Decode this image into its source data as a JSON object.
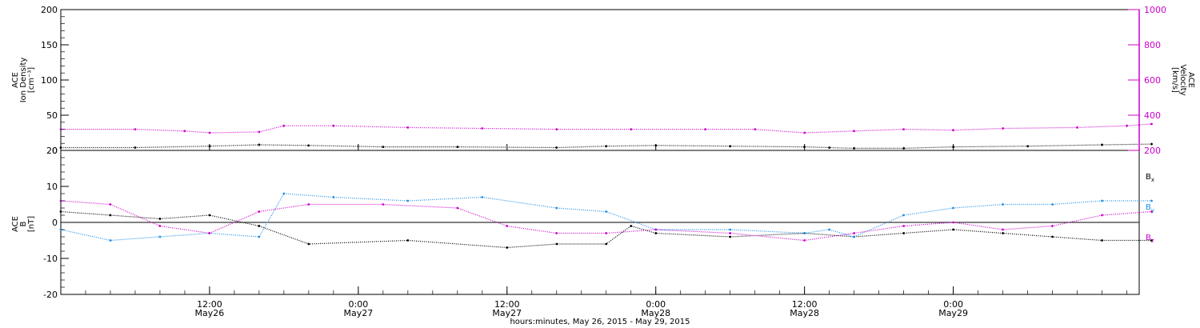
{
  "chart_data": [
    {
      "type": "scatter",
      "panel": "top",
      "ylabel_left_lines": [
        "ACE",
        "Ion Density",
        "[cm⁻³]"
      ],
      "ylabel_right_lines": [
        "ACE",
        "Velocity",
        "[km/s]"
      ],
      "ylim_left": [
        0,
        200
      ],
      "yticks_left": [
        "0",
        "50",
        "100",
        "150",
        "200"
      ],
      "ylim_right": [
        200,
        1000
      ],
      "yticks_right": [
        "200",
        "400",
        "600",
        "800",
        "1000"
      ],
      "right_axis_color": "#cc00cc",
      "x_range_hours": [
        0,
        87
      ],
      "series": [
        {
          "color": "#000000",
          "points": [
            [
              0,
              4
            ],
            [
              6,
              4
            ],
            [
              12,
              6
            ],
            [
              16,
              8
            ],
            [
              20,
              7
            ],
            [
              26,
              5
            ],
            [
              32,
              5
            ],
            [
              40,
              4
            ],
            [
              44,
              6
            ],
            [
              48,
              7
            ],
            [
              54,
              6
            ],
            [
              60,
              5
            ],
            [
              62,
              4
            ],
            [
              64,
              3
            ],
            [
              68,
              3
            ],
            [
              72,
              5
            ],
            [
              78,
              6
            ],
            [
              84,
              8
            ],
            [
              88,
              9
            ]
          ]
        },
        {
          "color": "#cc00cc",
          "points": [
            [
              0,
              320
            ],
            [
              6,
              320
            ],
            [
              10,
              310
            ],
            [
              12,
              300
            ],
            [
              16,
              305
            ],
            [
              18,
              340
            ],
            [
              22,
              340
            ],
            [
              28,
              330
            ],
            [
              34,
              325
            ],
            [
              40,
              320
            ],
            [
              46,
              320
            ],
            [
              52,
              320
            ],
            [
              56,
              320
            ],
            [
              60,
              300
            ],
            [
              64,
              310
            ],
            [
              68,
              320
            ],
            [
              72,
              315
            ],
            [
              76,
              325
            ],
            [
              82,
              330
            ],
            [
              86,
              340
            ],
            [
              88,
              350
            ]
          ]
        }
      ]
    },
    {
      "type": "scatter",
      "panel": "bottom",
      "ylabel_lines": [
        "ACE",
        "B",
        "[nT]"
      ],
      "ylim": [
        -20,
        20
      ],
      "yticks": [
        "-20",
        "-10",
        "0",
        "10",
        "20"
      ],
      "series": [
        {
          "name": "B",
          "sub": "x",
          "color": "#000000",
          "points": [
            [
              0,
              3
            ],
            [
              4,
              2
            ],
            [
              8,
              1
            ],
            [
              12,
              2
            ],
            [
              16,
              -1
            ],
            [
              20,
              -6
            ],
            [
              28,
              -5
            ],
            [
              36,
              -7
            ],
            [
              40,
              -6
            ],
            [
              44,
              -6
            ],
            [
              46,
              -1
            ],
            [
              48,
              -3
            ],
            [
              54,
              -4
            ],
            [
              60,
              -3
            ],
            [
              64,
              -4
            ],
            [
              68,
              -3
            ],
            [
              72,
              -2
            ],
            [
              76,
              -3
            ],
            [
              80,
              -4
            ],
            [
              84,
              -5
            ],
            [
              88,
              -5
            ]
          ]
        },
        {
          "name": "B",
          "sub": "y",
          "color": "#1f8fe6",
          "points": [
            [
              0,
              -2
            ],
            [
              4,
              -5
            ],
            [
              8,
              -4
            ],
            [
              12,
              -3
            ],
            [
              16,
              -4
            ],
            [
              18,
              8
            ],
            [
              22,
              7
            ],
            [
              28,
              6
            ],
            [
              34,
              7
            ],
            [
              40,
              4
            ],
            [
              44,
              3
            ],
            [
              48,
              -2
            ],
            [
              54,
              -2
            ],
            [
              60,
              -3
            ],
            [
              62,
              -2
            ],
            [
              64,
              -4
            ],
            [
              68,
              2
            ],
            [
              72,
              4
            ],
            [
              76,
              5
            ],
            [
              80,
              5
            ],
            [
              84,
              6
            ],
            [
              88,
              6
            ]
          ]
        },
        {
          "name": "B",
          "sub": "z",
          "color": "#cc00cc",
          "points": [
            [
              0,
              6
            ],
            [
              4,
              5
            ],
            [
              8,
              -1
            ],
            [
              12,
              -3
            ],
            [
              16,
              3
            ],
            [
              20,
              5
            ],
            [
              26,
              5
            ],
            [
              32,
              4
            ],
            [
              36,
              -1
            ],
            [
              40,
              -3
            ],
            [
              44,
              -3
            ],
            [
              48,
              -2
            ],
            [
              54,
              -3
            ],
            [
              60,
              -5
            ],
            [
              64,
              -3
            ],
            [
              68,
              -1
            ],
            [
              72,
              0
            ],
            [
              76,
              -2
            ],
            [
              80,
              -1
            ],
            [
              84,
              2
            ],
            [
              88,
              3
            ]
          ]
        }
      ]
    }
  ],
  "x_ticks": [
    {
      "hours": 12,
      "time": "12:00",
      "date": "May26"
    },
    {
      "hours": 24,
      "time": "0:00",
      "date": "May27"
    },
    {
      "hours": 36,
      "time": "12:00",
      "date": "May27"
    },
    {
      "hours": 48,
      "time": "0:00",
      "date": "May28"
    },
    {
      "hours": 60,
      "time": "12:00",
      "date": "May28"
    },
    {
      "hours": 72,
      "time": "0:00",
      "date": "May29"
    }
  ],
  "xlabel": "hours:minutes, May 26, 2015 - May 29, 2015"
}
